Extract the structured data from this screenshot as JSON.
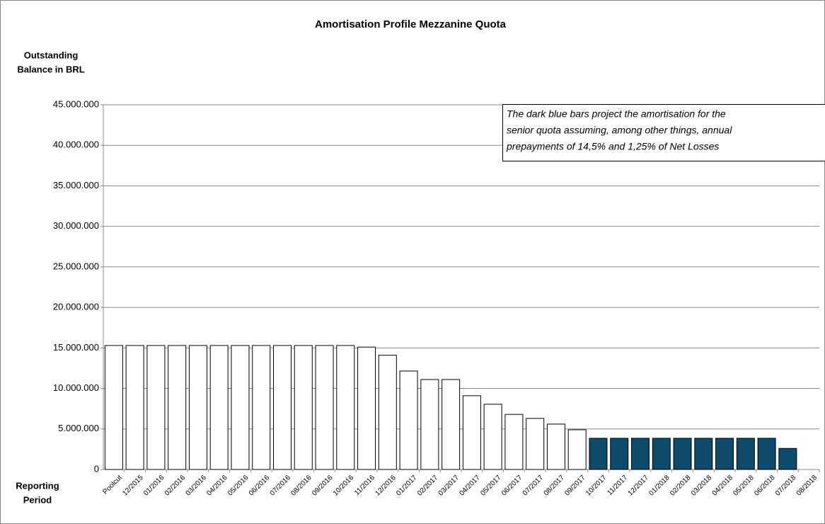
{
  "chart_data": {
    "type": "bar",
    "title": "Amortisation Profile Mezzanine Quota",
    "y_label": [
      "Outstanding",
      "Balance in BRL"
    ],
    "x_label": [
      "Reporting",
      "Period"
    ],
    "annotation": [
      "The dark blue bars project the amortisation for the",
      "senior quota assuming, among other things, annual",
      "prepayments of 14,5% and 1,25% of Net Losses"
    ],
    "categories": [
      "Poolcut",
      "12/2015",
      "01/2016",
      "02/2016",
      "03/2016",
      "04/2016",
      "05/2016",
      "06/2016",
      "07/2016",
      "08/2016",
      "09/2016",
      "10/2016",
      "11/2016",
      "12/2016",
      "01/2017",
      "02/2017",
      "03/2017",
      "04/2017",
      "05/2017",
      "06/2017",
      "07/2017",
      "08/2017",
      "09/2017",
      "10/2017",
      "11/2017",
      "12/2017",
      "01/2018",
      "02/2018",
      "03/2018",
      "04/2018",
      "05/2018",
      "06/2018",
      "07/2018",
      "08/2018"
    ],
    "values": [
      15300000,
      15300000,
      15300000,
      15300000,
      15300000,
      15300000,
      15300000,
      15300000,
      15300000,
      15300000,
      15300000,
      15300000,
      15100000,
      14100000,
      12150000,
      11100000,
      11100000,
      9100000,
      8050000,
      6800000,
      6300000,
      5600000,
      4900000,
      3850000,
      3850000,
      3850000,
      3850000,
      3850000,
      3850000,
      3850000,
      3850000,
      3850000,
      2600000,
      null
    ],
    "colors": [
      "#ffffff",
      "#ffffff",
      "#ffffff",
      "#ffffff",
      "#ffffff",
      "#ffffff",
      "#ffffff",
      "#ffffff",
      "#ffffff",
      "#ffffff",
      "#ffffff",
      "#ffffff",
      "#ffffff",
      "#ffffff",
      "#ffffff",
      "#ffffff",
      "#ffffff",
      "#ffffff",
      "#ffffff",
      "#ffffff",
      "#ffffff",
      "#ffffff",
      "#ffffff",
      "#0d4a6b",
      "#0d4a6b",
      "#0d4a6b",
      "#0d4a6b",
      "#0d4a6b",
      "#0d4a6b",
      "#0d4a6b",
      "#0d4a6b",
      "#0d4a6b",
      "#0d4a6b",
      null
    ],
    "ylim": [
      0,
      45000000
    ],
    "yticks": [
      0,
      {
        "value": 5000000,
        "label": "5.000.000"
      },
      {
        "value": 10000000,
        "label": "10.000.000"
      },
      {
        "value": 15000000,
        "label": "15.000.000"
      },
      {
        "value": 20000000,
        "label": "20.000.000"
      },
      {
        "value": 25000000,
        "label": "25.000.000"
      },
      {
        "value": 30000000,
        "label": "30.000.000"
      },
      {
        "value": 35000000,
        "label": "35.000.000"
      },
      {
        "value": 40000000,
        "label": "40.000.000"
      },
      {
        "value": 45000000,
        "label": "45.000.000"
      }
    ],
    "grid": true
  }
}
